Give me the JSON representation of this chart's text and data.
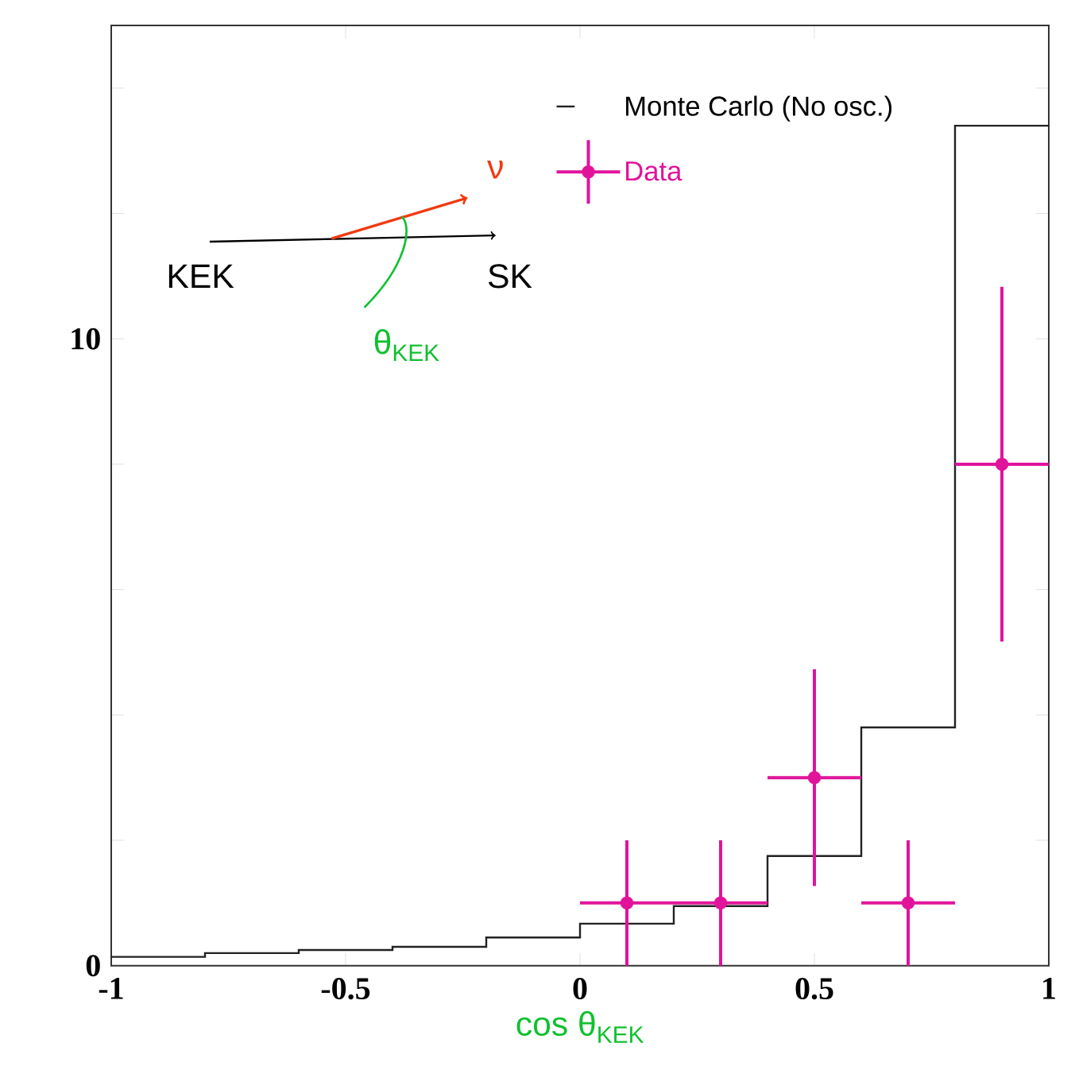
{
  "chart_data": {
    "type": "histogram",
    "xlabel": "cos θ$_{KEK}$",
    "xlim": [
      -1,
      1
    ],
    "xticks": [
      -1,
      -0.5,
      0,
      0.5,
      1
    ],
    "ylim": [
      0,
      15
    ],
    "yticks": [
      0,
      {
        "value": 2,
        "label": null
      },
      {
        "value": 4,
        "label": null
      },
      {
        "value": 6,
        "label": null
      },
      {
        "value": 8,
        "label": null
      },
      10,
      {
        "value": 12,
        "label": null
      },
      {
        "value": 14,
        "label": null
      }
    ],
    "legend": "top right",
    "series": [
      {
        "type": "histogram",
        "name": "Monte Carlo (No osc.)",
        "color": "#222222",
        "bins": [
          -1,
          -0.8,
          -0.6,
          -0.4,
          -0.2,
          0,
          0.2,
          0.4,
          0.6,
          0.8,
          1
        ],
        "values": [
          0.14,
          0.2,
          0.25,
          0.3,
          0.45,
          0.67,
          0.95,
          1.75,
          3.8,
          13.4
        ]
      },
      {
        "type": "scatter",
        "name": "Data",
        "color": "#e0149b",
        "marker": "circle",
        "x": [
          0.1,
          0.3,
          0.5,
          0.7,
          0.9
        ],
        "values": [
          1,
          1,
          3,
          1,
          8
        ],
        "errors": [
          1,
          1,
          1.73,
          1,
          2.83
        ],
        "xerrors": [
          0.1,
          0.1,
          0.1,
          0.1,
          0.1
        ]
      }
    ],
    "annotations": [
      "KEK",
      "SK",
      "ν",
      "θ$_{KEK}$"
    ]
  }
}
